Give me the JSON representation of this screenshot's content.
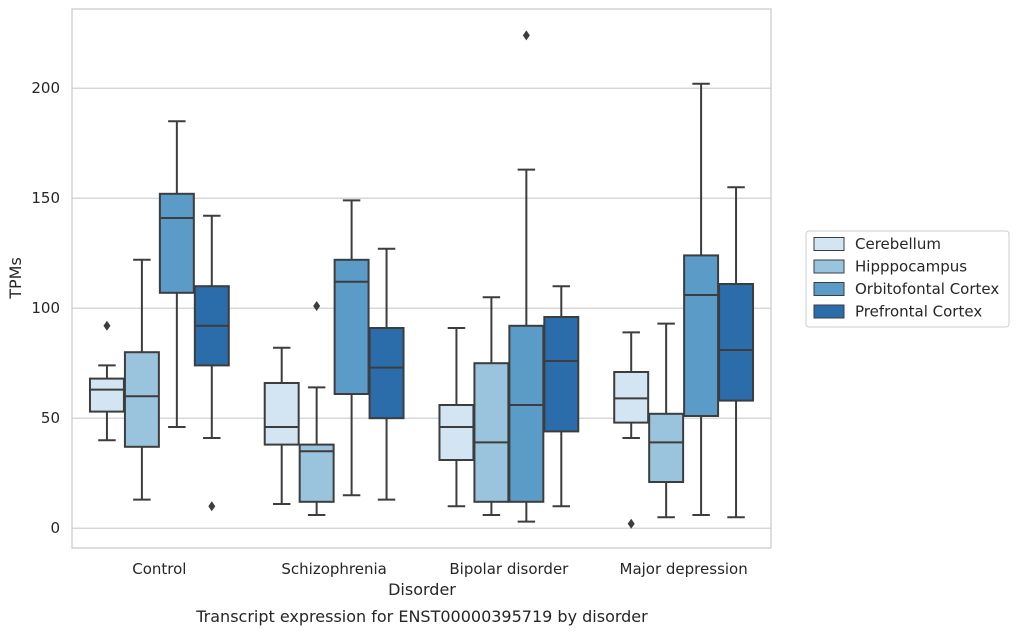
{
  "chart_data": {
    "type": "box",
    "caption": "Transcript expression for ENST00000395719 by disorder",
    "xlabel": "Disorder",
    "ylabel": "TPMs",
    "ylim": [
      -9,
      236
    ],
    "yticks": [
      0,
      50,
      100,
      150,
      200
    ],
    "grid": "horizontal",
    "legend_position": "right",
    "categories": [
      "Control",
      "Schizophrenia",
      "Bipolar disorder",
      "Major depression"
    ],
    "series": [
      {
        "name": "Cerebellum",
        "color": "#d3e4f3",
        "boxes": [
          {
            "whisker_low": 40,
            "q1": 53,
            "median": 63,
            "q3": 68,
            "whisker_high": 74,
            "outliers": [
              92
            ]
          },
          {
            "whisker_low": 11,
            "q1": 38,
            "median": 46,
            "q3": 66,
            "whisker_high": 82,
            "outliers": []
          },
          {
            "whisker_low": 10,
            "q1": 31,
            "median": 46,
            "q3": 56,
            "whisker_high": 91,
            "outliers": []
          },
          {
            "whisker_low": 41,
            "q1": 48,
            "median": 59,
            "q3": 71,
            "whisker_high": 89,
            "outliers": [
              2
            ]
          }
        ]
      },
      {
        "name": "Hipppocampus",
        "color": "#9ac4dd",
        "boxes": [
          {
            "whisker_low": 13,
            "q1": 37,
            "median": 60,
            "q3": 80,
            "whisker_high": 122,
            "outliers": []
          },
          {
            "whisker_low": 6,
            "q1": 12,
            "median": 35,
            "q3": 38,
            "whisker_high": 64,
            "outliers": [
              101
            ]
          },
          {
            "whisker_low": 6,
            "q1": 12,
            "median": 39,
            "q3": 75,
            "whisker_high": 105,
            "outliers": []
          },
          {
            "whisker_low": 5,
            "q1": 21,
            "median": 39,
            "q3": 52,
            "whisker_high": 93,
            "outliers": []
          }
        ]
      },
      {
        "name": "Orbitofontal Cortex",
        "color": "#5b9bc8",
        "boxes": [
          {
            "whisker_low": 46,
            "q1": 107,
            "median": 141,
            "q3": 152,
            "whisker_high": 185,
            "outliers": []
          },
          {
            "whisker_low": 15,
            "q1": 61,
            "median": 112,
            "q3": 122,
            "whisker_high": 149,
            "outliers": []
          },
          {
            "whisker_low": 3,
            "q1": 12,
            "median": 56,
            "q3": 92,
            "whisker_high": 163,
            "outliers": [
              224
            ]
          },
          {
            "whisker_low": 6,
            "q1": 51,
            "median": 106,
            "q3": 124,
            "whisker_high": 202,
            "outliers": []
          }
        ]
      },
      {
        "name": "Prefrontal Cortex",
        "color": "#2b6cab",
        "boxes": [
          {
            "whisker_low": 41,
            "q1": 74,
            "median": 92,
            "q3": 110,
            "whisker_high": 142,
            "outliers": [
              10
            ]
          },
          {
            "whisker_low": 13,
            "q1": 50,
            "median": 73,
            "q3": 91,
            "whisker_high": 127,
            "outliers": []
          },
          {
            "whisker_low": 10,
            "q1": 44,
            "median": 76,
            "q3": 96,
            "whisker_high": 110,
            "outliers": []
          },
          {
            "whisker_low": 5,
            "q1": 58,
            "median": 81,
            "q3": 111,
            "whisker_high": 155,
            "outliers": []
          }
        ]
      }
    ]
  }
}
